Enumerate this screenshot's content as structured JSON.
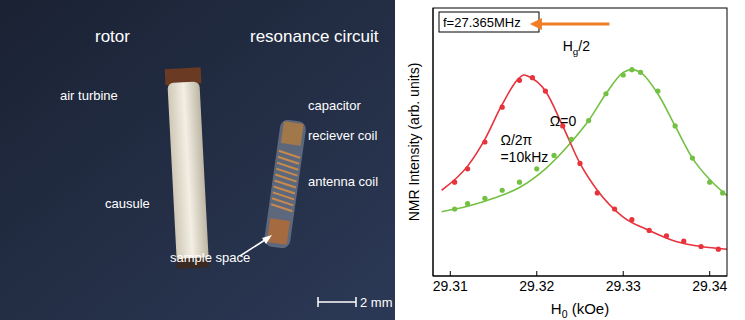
{
  "photo": {
    "rotor": "rotor",
    "air_turbine": "air turbine",
    "capsule": "causule",
    "resonance_circuit": "resonance circuit",
    "capacitor": "capacitor",
    "receiver_coil": "reciever coil",
    "antenna_coil": "antenna coil",
    "sample_space": "sample space",
    "scale_bar": "2 mm"
  },
  "chart_data": {
    "type": "scatter",
    "annotation": "f=27.365MHz",
    "shift_label": "Hg/2",
    "xlabel": "H0 (kOe)",
    "ylabel": "NMR Intensity (arb. units)",
    "xlim": [
      29.308,
      29.342
    ],
    "xticks": [
      29.31,
      29.32,
      29.33,
      29.34
    ],
    "ylim": [
      0,
      1
    ],
    "tick_labels": "x",
    "series": [
      {
        "name": "Ω=0",
        "color": "#74c043",
        "marker": "circle",
        "x": [
          29.3105,
          29.312,
          29.314,
          29.316,
          29.318,
          29.32,
          29.322,
          29.324,
          29.326,
          29.328,
          29.33,
          29.331,
          29.332,
          29.334,
          29.336,
          29.338,
          29.34,
          29.3415
        ],
        "values": [
          0.25,
          0.27,
          0.29,
          0.32,
          0.35,
          0.4,
          0.45,
          0.51,
          0.58,
          0.68,
          0.75,
          0.77,
          0.76,
          0.69,
          0.56,
          0.44,
          0.35,
          0.31
        ],
        "fit": {
          "x": [
            29.309,
            29.312,
            29.315,
            29.318,
            29.321,
            29.324,
            29.326,
            29.328,
            29.33,
            29.331,
            29.332,
            29.334,
            29.336,
            29.338,
            29.34,
            29.342
          ],
          "values": [
            0.24,
            0.26,
            0.29,
            0.33,
            0.4,
            0.5,
            0.58,
            0.68,
            0.76,
            0.77,
            0.76,
            0.68,
            0.56,
            0.44,
            0.36,
            0.3
          ]
        }
      },
      {
        "name": "Ω/2π =10kHz",
        "color": "#e8323c",
        "marker": "circle",
        "x": [
          29.3105,
          29.312,
          29.314,
          29.316,
          29.318,
          29.3195,
          29.321,
          29.323,
          29.325,
          29.327,
          29.329,
          29.331,
          29.333,
          29.335,
          29.337,
          29.339,
          29.341
        ],
        "values": [
          0.35,
          0.4,
          0.5,
          0.63,
          0.73,
          0.74,
          0.69,
          0.56,
          0.42,
          0.31,
          0.25,
          0.21,
          0.17,
          0.15,
          0.13,
          0.11,
          0.1
        ],
        "fit": {
          "x": [
            29.309,
            29.312,
            29.314,
            29.316,
            29.318,
            29.3185,
            29.319,
            29.321,
            29.323,
            29.325,
            29.327,
            29.33,
            29.333,
            29.336,
            29.339,
            29.342
          ],
          "values": [
            0.32,
            0.41,
            0.51,
            0.64,
            0.74,
            0.75,
            0.745,
            0.69,
            0.56,
            0.42,
            0.32,
            0.22,
            0.17,
            0.13,
            0.11,
            0.1
          ]
        }
      }
    ]
  }
}
